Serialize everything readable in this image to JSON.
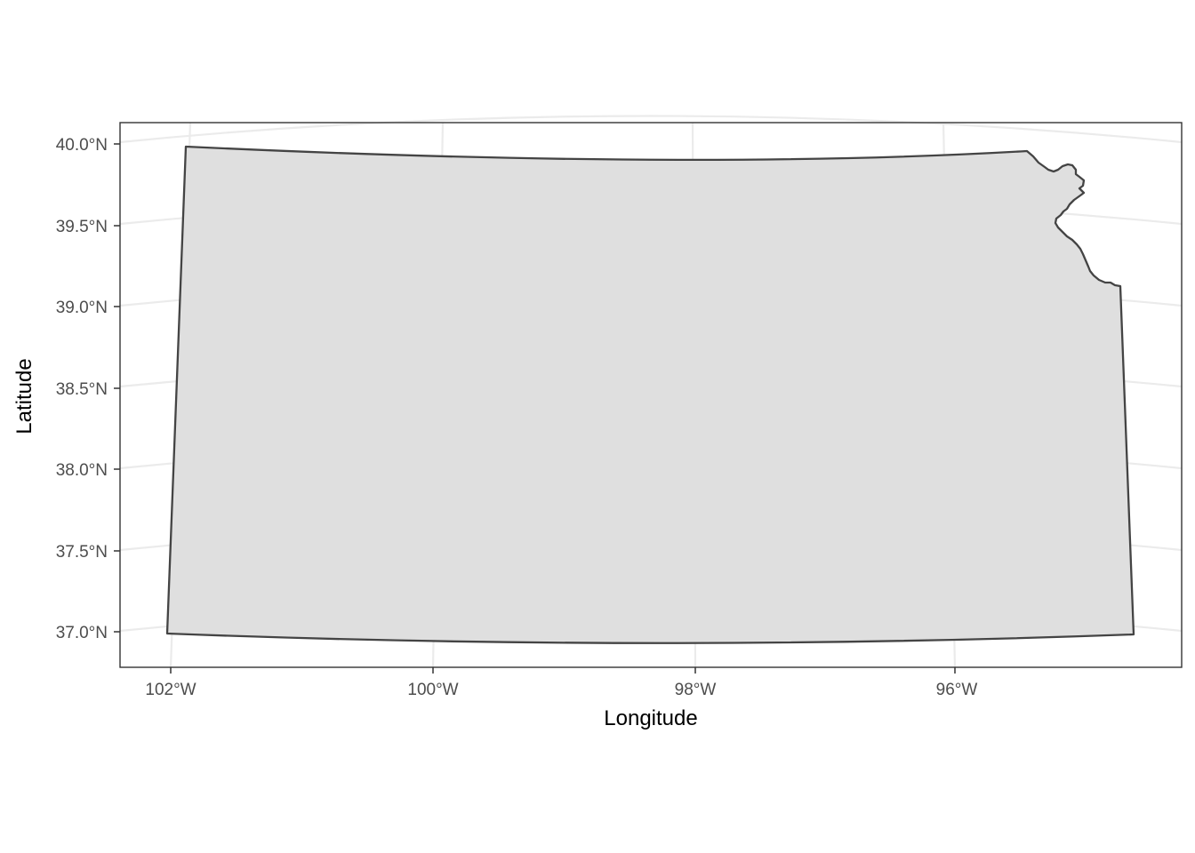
{
  "map": {
    "xlabel": "Longitude",
    "ylabel": "Latitude",
    "lon_ticks": [
      {
        "value": -102,
        "label": "102°W"
      },
      {
        "value": -100,
        "label": "100°W"
      },
      {
        "value": -98,
        "label": "98°W"
      },
      {
        "value": -96,
        "label": "96°W"
      }
    ],
    "lat_ticks": [
      {
        "value": 40.0,
        "label": "40.0°N"
      },
      {
        "value": 39.5,
        "label": "39.5°N"
      },
      {
        "value": 39.0,
        "label": "39.0°N"
      },
      {
        "value": 38.5,
        "label": "38.5°N"
      },
      {
        "value": 38.0,
        "label": "38.0°N"
      },
      {
        "value": 37.5,
        "label": "37.5°N"
      },
      {
        "value": 37.0,
        "label": "37.0°N"
      }
    ],
    "region": {
      "fill_color": "#dfdfdf",
      "outline_color": "#444444"
    },
    "grid": true,
    "grid_color": "#ebebeb",
    "panel_border": true,
    "background": "white"
  }
}
